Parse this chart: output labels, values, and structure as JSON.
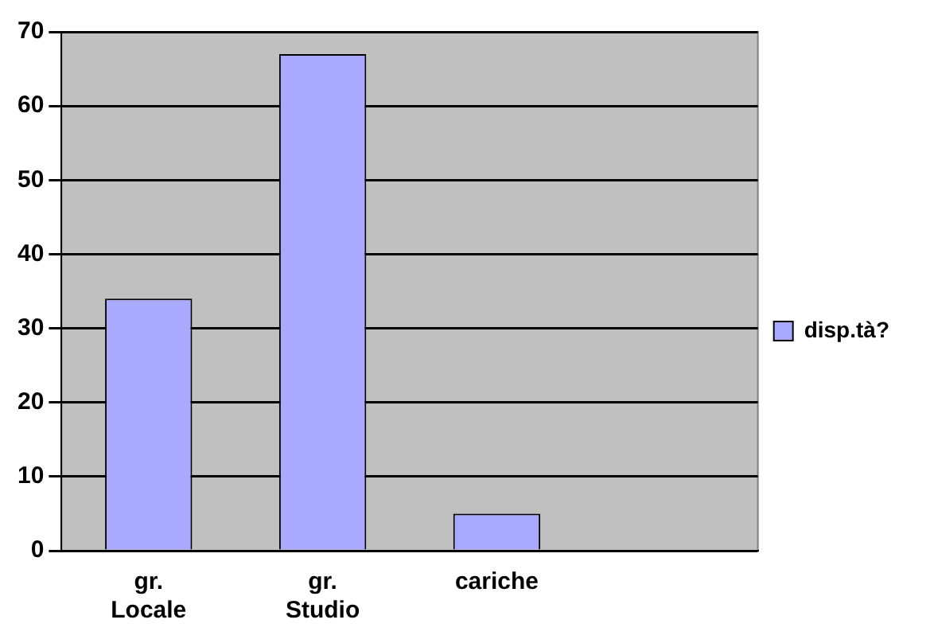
{
  "chart_data": {
    "type": "bar",
    "categories": [
      "gr. Locale",
      "gr. Studio",
      "cariche",
      null
    ],
    "series": [
      {
        "name": "disp.tà?",
        "color": "#a9aaff",
        "values": [
          34,
          67,
          5,
          null
        ]
      }
    ],
    "ylim": [
      0,
      70
    ],
    "yticks": [
      0,
      10,
      20,
      30,
      40,
      50,
      60,
      70
    ],
    "grid": "y",
    "legend": "right"
  }
}
